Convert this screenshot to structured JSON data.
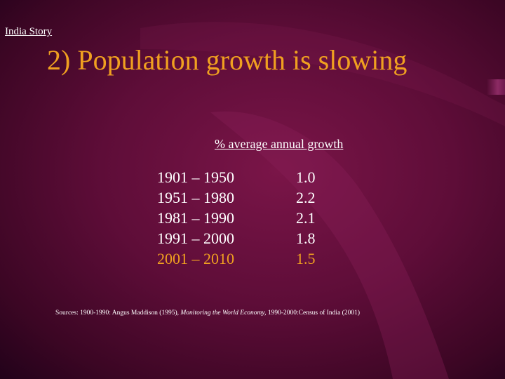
{
  "slide": {
    "kicker": "India Story",
    "title": "2) Population growth is slowing",
    "column_heading": "% average annual growth",
    "rows": [
      {
        "period": "1901 – 1950",
        "value": "1.0",
        "highlight": false
      },
      {
        "period": "1951 – 1980",
        "value": "2.2",
        "highlight": false
      },
      {
        "period": "1981 – 1990",
        "value": "2.1",
        "highlight": false
      },
      {
        "period": "1991 – 2000",
        "value": "1.8",
        "highlight": false
      },
      {
        "period": "2001 – 2010",
        "value": "1.5",
        "highlight": true
      }
    ],
    "sources": {
      "prefix": "Sources: 1900-1990: Angus Maddison (1995), ",
      "italic": "Monitoring the World Economy,",
      "suffix": " 1990-2000:Census of India (2001)"
    }
  },
  "colors": {
    "accent": "#f0a020",
    "text": "#ffffff",
    "background": "#5e0d38"
  }
}
